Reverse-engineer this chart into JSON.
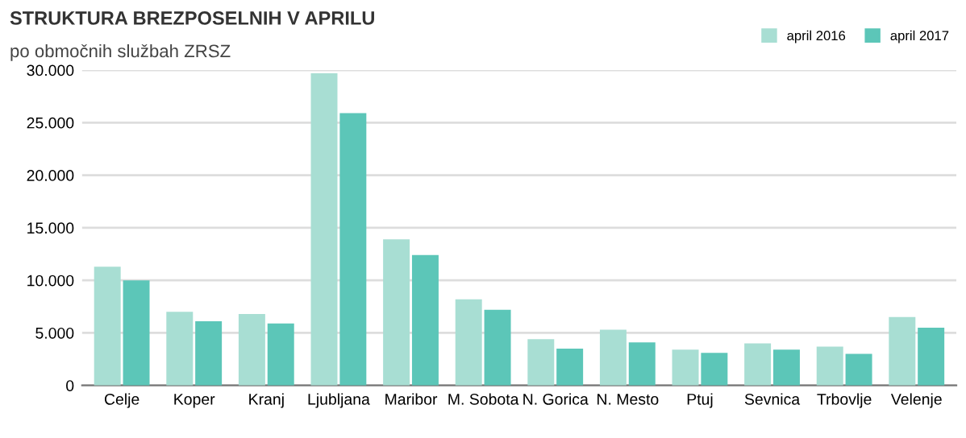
{
  "chart_data": {
    "type": "bar",
    "title": "STRUKTURA BREZPOSELNIH V APRILU",
    "subtitle": "po območnih službah ZRSZ",
    "categories": [
      "Celje",
      "Koper",
      "Kranj",
      "Ljubljana",
      "Maribor",
      "M. Sobota",
      "N. Gorica",
      "N. Mesto",
      "Ptuj",
      "Sevnica",
      "Trbovlje",
      "Velenje"
    ],
    "series": [
      {
        "name": "april 2016",
        "color": "#a8ded3",
        "values": [
          11300,
          7000,
          6800,
          29700,
          13900,
          8200,
          4400,
          5300,
          3400,
          4000,
          3700,
          6500
        ]
      },
      {
        "name": "april 2017",
        "color": "#5cc6b8",
        "values": [
          10000,
          6100,
          5900,
          25900,
          12400,
          7200,
          3500,
          4100,
          3100,
          3400,
          3000,
          5500
        ]
      }
    ],
    "ylim": [
      0,
      30000
    ],
    "yticks": [
      0,
      {
        "value": 5000,
        "label": "5.000"
      },
      {
        "value": 10000,
        "label": "10.000"
      },
      {
        "value": 15000,
        "label": "15.000"
      },
      {
        "value": 20000,
        "label": "20.000"
      },
      {
        "value": 25000,
        "label": "25.000"
      },
      {
        "value": 30000,
        "label": "30.000"
      }
    ],
    "grid": "y",
    "legend": "top right"
  }
}
